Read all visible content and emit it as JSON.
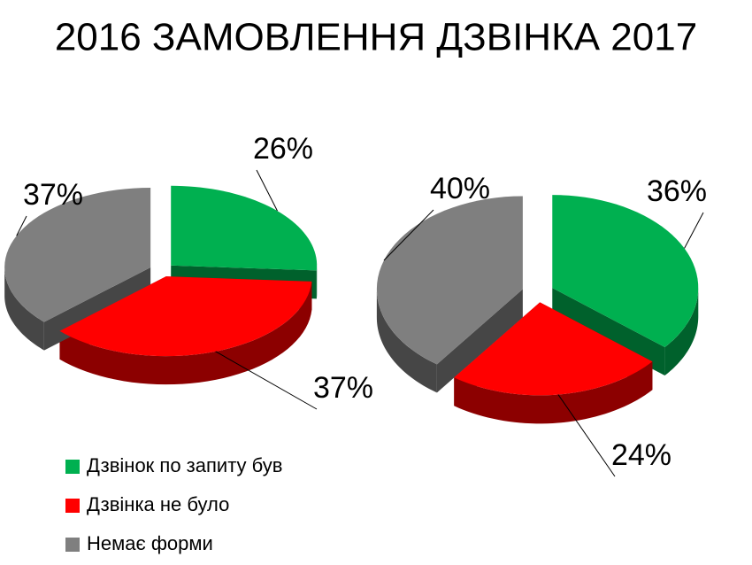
{
  "title": "2016 ЗАМОВЛЕННЯ ДЗВІНКА 2017",
  "legend": {
    "names": [
      "Дзвінок по запиту був",
      "Дзвінка не було",
      "Немає форми"
    ],
    "colors": [
      "#00b050",
      "#ff0000",
      "#7f7f7f"
    ]
  },
  "chart_data": [
    {
      "type": "pie",
      "values": [
        26,
        37,
        37
      ],
      "value_labels": [
        "26%",
        "37%",
        "37%"
      ]
    },
    {
      "type": "pie",
      "values": [
        36,
        24,
        40
      ],
      "value_labels": [
        "36%",
        "24%",
        "40%"
      ]
    }
  ]
}
